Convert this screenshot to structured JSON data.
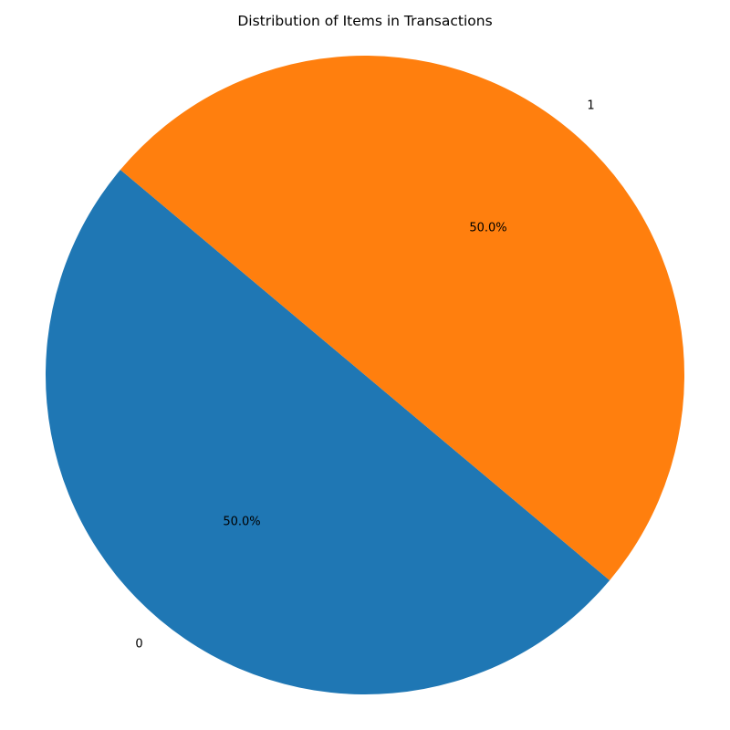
{
  "chart_data": {
    "type": "pie",
    "title": "Distribution of Items in Transactions",
    "categories": [
      "0",
      "1"
    ],
    "values": [
      50.0,
      50.0
    ],
    "percent_labels": [
      "50.0%",
      "50.0%"
    ],
    "colors": [
      "#1f77b4",
      "#ff7f0e"
    ],
    "start_angle_deg": 140,
    "legend": "none"
  }
}
